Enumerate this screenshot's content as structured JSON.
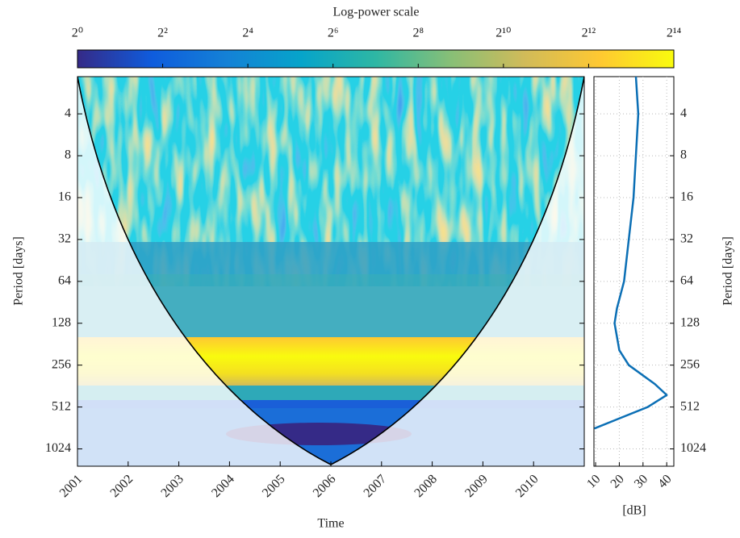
{
  "chart_data": [
    {
      "type": "heatmap",
      "title": "Log-power scale",
      "colorbar": {
        "clim": [
          1,
          16384
        ],
        "log": true,
        "ticks": [
          {
            "value": 1,
            "label": "2⁰"
          },
          {
            "value": 4,
            "label": "2²"
          },
          {
            "value": 16,
            "label": "2⁴"
          },
          {
            "value": 64,
            "label": "2⁶"
          },
          {
            "value": 256,
            "label": "2⁸"
          },
          {
            "value": 1024,
            "label": "2¹⁰"
          },
          {
            "value": 4096,
            "label": "2¹²"
          },
          {
            "value": 16384,
            "label": "2¹⁴"
          }
        ]
      },
      "xlabel": "Time",
      "ylabel": "Period [days]",
      "xlim": [
        2001,
        2011
      ],
      "xticks": [
        2001,
        2002,
        2003,
        2004,
        2005,
        2006,
        2007,
        2008,
        2009,
        2010
      ],
      "ylim": [
        2.16,
        1364
      ],
      "ylog": true,
      "yticks": [
        4,
        8,
        16,
        32,
        64,
        128,
        256,
        512,
        1024
      ]
    },
    {
      "type": "line",
      "xlabel": "[dB]",
      "ylabel": "Period [days]",
      "xlim": [
        9.3,
        43
      ],
      "xticks": [
        10,
        20,
        30,
        40
      ],
      "ylim": [
        2.16,
        1364
      ],
      "ylog": true,
      "yticks": [
        4,
        8,
        16,
        32,
        64,
        128,
        256,
        512,
        1024
      ],
      "grid": true,
      "color": "#0b6fb5",
      "y": [
        2.16,
        4,
        8,
        16,
        32,
        64,
        100,
        128,
        200,
        256,
        350,
        420,
        512,
        730
      ],
      "values": [
        27,
        28,
        27,
        26,
        24,
        22,
        19,
        18,
        20,
        24,
        35,
        40,
        32,
        9.5
      ]
    }
  ]
}
